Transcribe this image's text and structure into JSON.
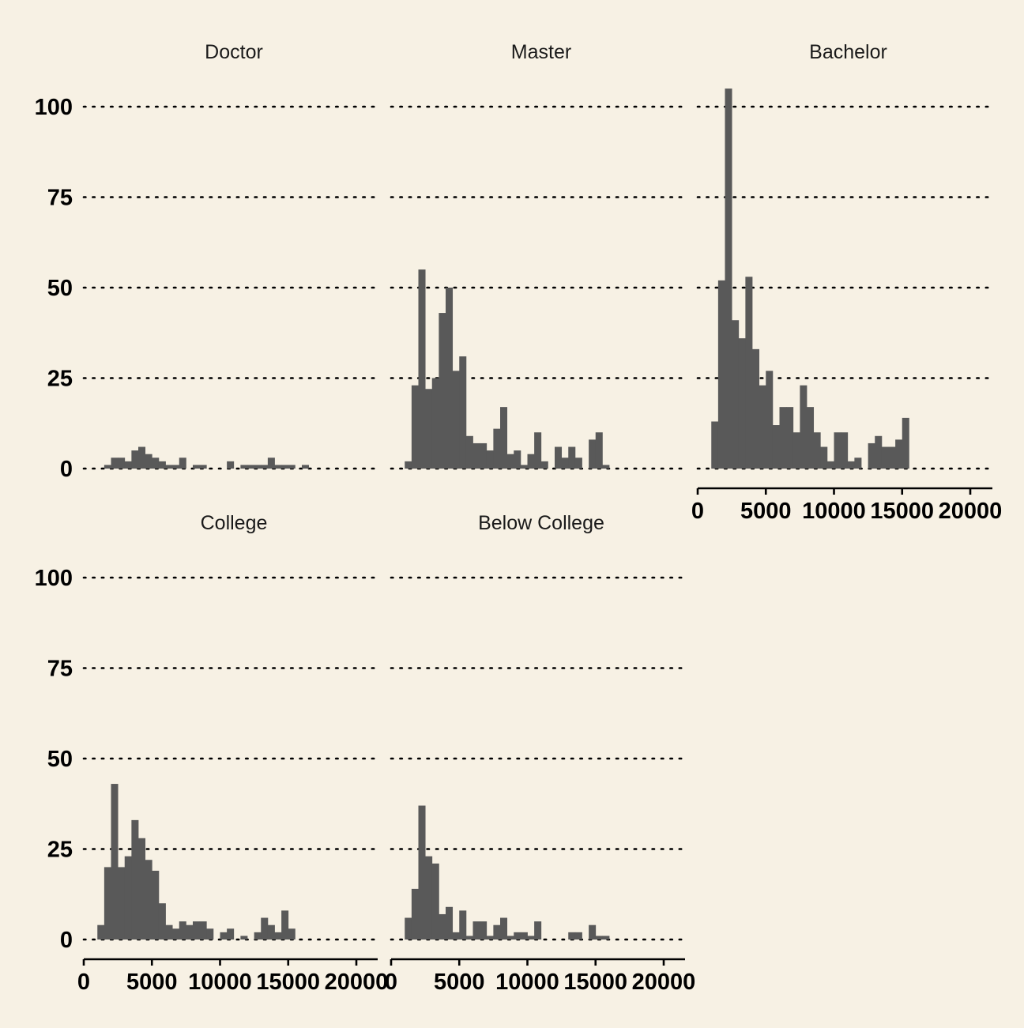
{
  "colors": {
    "background": "#f7f1e4",
    "bar_fill": "#595959",
    "text": "#000000"
  },
  "chart_data": {
    "type": "bar",
    "subtype": "faceted-histogram",
    "title": "",
    "xlabel": "",
    "ylabel": "",
    "grid": "horizontal-dotted",
    "legend": "none",
    "bin_width": 500,
    "bin_starts": [
      1000,
      1500,
      2000,
      2500,
      3000,
      3500,
      4000,
      4500,
      5000,
      5500,
      6000,
      6500,
      7000,
      7500,
      8000,
      8500,
      9000,
      9500,
      10000,
      10500,
      11000,
      11500,
      12000,
      12500,
      13000,
      13500,
      14000,
      14500,
      15000,
      15500,
      16000,
      16500,
      17000,
      17500,
      18000,
      18500,
      19000,
      19500,
      20000
    ],
    "xlim": [
      0,
      21000
    ],
    "ylim": [
      0,
      105
    ],
    "x_ticks": [
      0,
      5000,
      10000,
      15000,
      20000
    ],
    "x_tick_labels": [
      "0",
      "5000",
      "10000",
      "15000",
      "20000"
    ],
    "y_ticks": [
      0,
      25,
      50,
      75,
      100
    ],
    "y_tick_labels": [
      "0",
      "25",
      "50",
      "75",
      "100"
    ],
    "facets": [
      {
        "name": "Doctor",
        "values": [
          0,
          1,
          3,
          3,
          2,
          5,
          6,
          4,
          3,
          2,
          1,
          1,
          3,
          0,
          1,
          1,
          0,
          0,
          0,
          2,
          0,
          1,
          1,
          1,
          1,
          3,
          1,
          1,
          1,
          0,
          1,
          0,
          0,
          0,
          0,
          0,
          0,
          0,
          0
        ]
      },
      {
        "name": "Master",
        "values": [
          2,
          23,
          55,
          22,
          25,
          43,
          50,
          27,
          31,
          9,
          7,
          7,
          5,
          11,
          17,
          4,
          5,
          1,
          4,
          10,
          2,
          0,
          6,
          3,
          6,
          3,
          0,
          8,
          10,
          1,
          0,
          0,
          0,
          0,
          0,
          0,
          0,
          0,
          0
        ]
      },
      {
        "name": "Bachelor",
        "values": [
          13,
          52,
          105,
          41,
          36,
          53,
          33,
          23,
          27,
          12,
          17,
          17,
          10,
          23,
          17,
          10,
          6,
          2,
          10,
          10,
          2,
          3,
          0,
          7,
          9,
          6,
          6,
          8,
          14,
          0,
          0,
          0,
          0,
          0,
          0,
          0,
          0,
          0,
          0
        ]
      },
      {
        "name": "College",
        "values": [
          4,
          20,
          43,
          20,
          23,
          33,
          28,
          22,
          19,
          10,
          4,
          3,
          5,
          4,
          5,
          5,
          3,
          0,
          2,
          3,
          0,
          1,
          0,
          2,
          6,
          4,
          2,
          8,
          3,
          0,
          0,
          0,
          0,
          0,
          0,
          0,
          0,
          0,
          0
        ]
      },
      {
        "name": "Below College",
        "values": [
          6,
          14,
          37,
          23,
          21,
          7,
          9,
          2,
          8,
          1,
          5,
          5,
          1,
          4,
          6,
          1,
          2,
          2,
          1,
          5,
          0,
          0,
          0,
          0,
          2,
          2,
          0,
          4,
          1,
          1,
          0,
          0,
          0,
          0,
          0,
          0,
          0,
          0,
          0
        ]
      }
    ]
  }
}
